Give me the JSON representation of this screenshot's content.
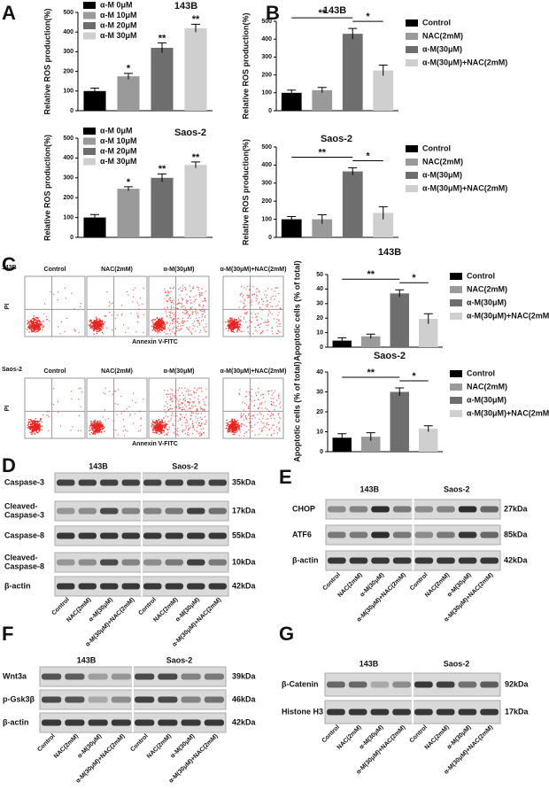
{
  "panel_labels": [
    "A",
    "B",
    "C",
    "D",
    "E",
    "F",
    "G"
  ],
  "chart_data": [
    {
      "type": "bar",
      "title": "143B",
      "y_label": "Relative ROS production(%)",
      "categories": [
        "α-M 0μM",
        "α-M 10μM",
        "α-M 20μM",
        "α-M 30μM"
      ],
      "values": [
        100,
        175,
        320,
        420
      ],
      "errors": [
        15,
        15,
        25,
        20
      ],
      "colors": [
        "#000000",
        "#9a9a9a",
        "#6e6e6e",
        "#cfcfcf"
      ],
      "ylim": [
        0,
        500
      ],
      "yticks": [
        0,
        100,
        200,
        300,
        400,
        500
      ],
      "legend": "upper-left",
      "annotations": [
        {
          "label": "*",
          "category": "α-M 10μM"
        },
        {
          "label": "**",
          "category": "α-M 20μM"
        },
        {
          "label": "**",
          "category": "α-M 30μM"
        }
      ]
    },
    {
      "type": "bar",
      "title": "Saos-2",
      "y_label": "Relative ROS production(%)",
      "categories": [
        "α-M 0μM",
        "α-M 10μM",
        "α-M 20μM",
        "α-M 30μM"
      ],
      "values": [
        100,
        245,
        300,
        365
      ],
      "errors": [
        15,
        10,
        20,
        15
      ],
      "colors": [
        "#000000",
        "#9a9a9a",
        "#6e6e6e",
        "#cfcfcf"
      ],
      "ylim": [
        0,
        500
      ],
      "yticks": [
        0,
        100,
        200,
        300,
        400,
        500
      ],
      "legend": "upper-left",
      "annotations": [
        {
          "label": "*",
          "category": "α-M 10μM"
        },
        {
          "label": "**",
          "category": "α-M 20μM"
        },
        {
          "label": "**",
          "category": "α-M 30μM"
        }
      ]
    },
    {
      "type": "bar",
      "title": "143B",
      "y_label": "Relative ROS production(%)",
      "categories": [
        "Control",
        "NAC(2mM)",
        "α-M(30μM)",
        "α-M(30μM)+NAC(2mM)"
      ],
      "values": [
        100,
        115,
        430,
        225
      ],
      "errors": [
        15,
        15,
        30,
        30
      ],
      "colors": [
        "#000000",
        "#9a9a9a",
        "#6e6e6e",
        "#cfcfcf"
      ],
      "ylim": [
        0,
        500
      ],
      "yticks": [
        0,
        100,
        200,
        300,
        400,
        500
      ],
      "legend": "right",
      "brackets": [
        {
          "label": "**",
          "from": "Control",
          "to": "α-M(30μM)"
        },
        {
          "label": "*",
          "from": "α-M(30μM)",
          "to": "α-M(30μM)+NAC(2mM)"
        }
      ]
    },
    {
      "type": "bar",
      "title": "Saos-2",
      "y_label": "Relative ROS production(%)",
      "categories": [
        "Control",
        "NAC(2mM)",
        "α-M(30μM)",
        "α-M(30μM)+NAC(2mM)"
      ],
      "values": [
        100,
        100,
        365,
        135
      ],
      "errors": [
        15,
        25,
        20,
        35
      ],
      "colors": [
        "#000000",
        "#9a9a9a",
        "#6e6e6e",
        "#cfcfcf"
      ],
      "ylim": [
        0,
        500
      ],
      "yticks": [
        0,
        100,
        200,
        300,
        400,
        500
      ],
      "legend": "right",
      "brackets": [
        {
          "label": "**",
          "from": "Control",
          "to": "α-M(30μM)"
        },
        {
          "label": "*",
          "from": "α-M(30μM)",
          "to": "α-M(30μM)+NAC(2mM)"
        }
      ]
    },
    {
      "type": "bar",
      "title": "143B",
      "y_label": "Apoptotic cells (% of total)",
      "categories": [
        "Control",
        "NAC(2mM)",
        "α-M(30μM)",
        "α-M(30μM)+NAC(2mM)"
      ],
      "values": [
        4.5,
        7.5,
        37,
        19.5
      ],
      "errors": [
        2,
        1.5,
        2.5,
        3.5
      ],
      "colors": [
        "#000000",
        "#9a9a9a",
        "#6e6e6e",
        "#cfcfcf"
      ],
      "ylim": [
        0,
        50
      ],
      "yticks": [
        0,
        10,
        20,
        30,
        40,
        50
      ],
      "legend": "right",
      "brackets": [
        {
          "label": "**",
          "from": "Control",
          "to": "α-M(30μM)"
        },
        {
          "label": "*",
          "from": "α-M(30μM)",
          "to": "α-M(30μM)+NAC(2mM)"
        }
      ]
    },
    {
      "type": "bar",
      "title": "Saos-2",
      "y_label": "Apoptotic cells (% of total)",
      "categories": [
        "Control",
        "NAC(2mM)",
        "α-M(30μM)",
        "α-M(30μM)+NAC(2mM)"
      ],
      "values": [
        7,
        7.5,
        30,
        11.5
      ],
      "errors": [
        2,
        2,
        2,
        1.5
      ],
      "colors": [
        "#000000",
        "#9a9a9a",
        "#6e6e6e",
        "#cfcfcf"
      ],
      "ylim": [
        0,
        40
      ],
      "yticks": [
        0,
        10,
        20,
        30,
        40
      ],
      "legend": "right",
      "brackets": [
        {
          "label": "**",
          "from": "Control",
          "to": "α-M(30μM)"
        },
        {
          "label": "*",
          "from": "α-M(30μM)",
          "to": "α-M(30μM)+NAC(2mM)"
        }
      ]
    }
  ],
  "flow_cytometry": {
    "cell_lines": [
      "143B",
      "Saos-2"
    ],
    "conditions": [
      "Control",
      "NAC(2mM)",
      "α-M(30μM)",
      "α-M(30μM)+NAC(2mM)"
    ],
    "y_label": "PI",
    "x_label": "Annexin V-FITC"
  },
  "blots": [
    {
      "cell_lines": [
        "143B",
        "Saos-2"
      ],
      "rows": [
        {
          "protein": "Caspase-3",
          "size": "35kDa"
        },
        {
          "protein": [
            "Cleaved-",
            "Caspase-3"
          ],
          "size": "17kDa"
        },
        {
          "protein": "Caspase-8",
          "size": "55kDa"
        },
        {
          "protein": [
            "Cleaved-",
            "Caspase-8"
          ],
          "size": "10kDa"
        },
        {
          "protein": "β-actin",
          "size": "42kDa"
        }
      ],
      "lanes": [
        "Control",
        "NAC(2mM)",
        "α-M(30μM)",
        "α-M(30μM)+NAC(2mM)"
      ]
    },
    {
      "cell_lines": [
        "143B",
        "Saos-2"
      ],
      "rows": [
        {
          "protein": "CHOP",
          "size": "27kDa"
        },
        {
          "protein": "ATF6",
          "size": "85kDa"
        },
        {
          "protein": "β-actin",
          "size": "42kDa"
        }
      ],
      "lanes": [
        "Control",
        "NAC(2mM)",
        "α-M(30μM)",
        "α-M(30μM)+NAC(2mM)"
      ]
    },
    {
      "cell_lines": [
        "143B",
        "Saos-2"
      ],
      "rows": [
        {
          "protein": "Wnt3a",
          "size": "39kDa"
        },
        {
          "protein": "p-Gsk3β",
          "size": "46kDa"
        },
        {
          "protein": "β-actin",
          "size": "42kDa"
        }
      ],
      "lanes": [
        "Control",
        "NAC(2mM)",
        "α-M(30μM)",
        "α-M(30μM)+NAC(2mM)"
      ]
    },
    {
      "cell_lines": [
        "143B",
        "Saos-2"
      ],
      "rows": [
        {
          "protein": "β-Catenin",
          "size": "92kDa"
        },
        {
          "protein": "Histone H3",
          "size": "17kDa"
        }
      ],
      "lanes": [
        "Control",
        "NAC(2mM)",
        "α-M(30μM)",
        "α-M(30μM)+NAC(2mM)"
      ]
    }
  ]
}
